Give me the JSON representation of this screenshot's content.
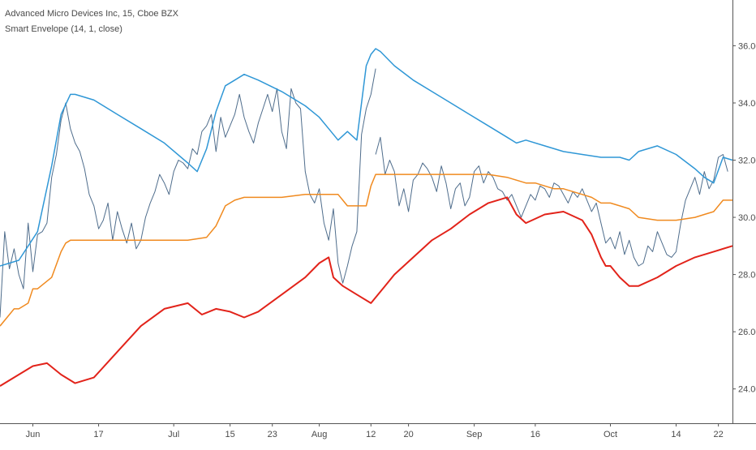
{
  "legend": {
    "title": "Advanced Micro Devices Inc, 15, Cboe BZX",
    "indicator": "Smart Envelope (14, 1, close)"
  },
  "chart_data": {
    "type": "line",
    "ylim": [
      22.8,
      37.6
    ],
    "xlim": [
      0,
      156
    ],
    "y_ticks": [
      {
        "label": "36.00",
        "value": 36
      },
      {
        "label": "34.00",
        "value": 34
      },
      {
        "label": "32.00",
        "value": 32
      },
      {
        "label": "30.00",
        "value": 30
      },
      {
        "label": "28.00",
        "value": 28
      },
      {
        "label": "26.00",
        "value": 26
      },
      {
        "label": "24.00",
        "value": 24
      }
    ],
    "x_ticks": [
      {
        "label": "Jun",
        "x": 7
      },
      {
        "label": "17",
        "x": 21
      },
      {
        "label": "Jul",
        "x": 37
      },
      {
        "label": "15",
        "x": 49
      },
      {
        "label": "23",
        "x": 58
      },
      {
        "label": "Aug",
        "x": 68
      },
      {
        "label": "12",
        "x": 79
      },
      {
        "label": "20",
        "x": 87
      },
      {
        "label": "Sep",
        "x": 101
      },
      {
        "label": "16",
        "x": 114
      },
      {
        "label": "Oct",
        "x": 130
      },
      {
        "label": "14",
        "x": 144
      },
      {
        "label": "22",
        "x": 153
      }
    ],
    "colors": {
      "price": "#4f6d8c",
      "upper": "#2f97d6",
      "middle": "#f08a1f",
      "lower": "#e2231a",
      "axis": "#555555"
    },
    "series": [
      {
        "key": "upper",
        "x": [
          0,
          4,
          8,
          11,
          13,
          15,
          16,
          20,
          25,
          30,
          35,
          40,
          42,
          44,
          46,
          48,
          50,
          52,
          55,
          60,
          65,
          68,
          70,
          72,
          74,
          76,
          78,
          79,
          80,
          81,
          84,
          88,
          92,
          96,
          100,
          104,
          108,
          110,
          112,
          116,
          120,
          124,
          128,
          130,
          132,
          134,
          136,
          140,
          144,
          148,
          150,
          152,
          154,
          156
        ],
        "y": [
          28.3,
          28.5,
          29.5,
          31.8,
          33.6,
          34.3,
          34.3,
          34.1,
          33.6,
          33.1,
          32.6,
          31.9,
          31.6,
          32.4,
          33.7,
          34.6,
          34.8,
          35.0,
          34.8,
          34.4,
          33.9,
          33.5,
          33.1,
          32.7,
          33.0,
          32.7,
          35.3,
          35.7,
          35.9,
          35.8,
          35.3,
          34.8,
          34.4,
          34.0,
          33.6,
          33.2,
          32.8,
          32.6,
          32.7,
          32.5,
          32.3,
          32.2,
          32.1,
          32.1,
          32.1,
          32.0,
          32.3,
          32.5,
          32.2,
          31.7,
          31.4,
          31.2,
          32.1,
          32.0
        ]
      },
      {
        "key": "middle",
        "x": [
          0,
          2,
          3,
          4,
          6,
          7,
          8,
          11,
          13,
          14,
          15,
          16,
          20,
          25,
          30,
          35,
          40,
          44,
          46,
          48,
          50,
          52,
          55,
          60,
          65,
          68,
          70,
          72,
          73,
          74,
          76,
          78,
          79,
          80,
          90,
          100,
          104,
          108,
          110,
          112,
          114,
          116,
          118,
          120,
          122,
          124,
          126,
          128,
          130,
          132,
          134,
          136,
          140,
          144,
          148,
          150,
          152,
          154,
          156
        ],
        "y": [
          26.2,
          26.6,
          26.8,
          26.8,
          27.0,
          27.5,
          27.5,
          27.9,
          28.8,
          29.1,
          29.2,
          29.2,
          29.2,
          29.2,
          29.2,
          29.2,
          29.2,
          29.3,
          29.7,
          30.4,
          30.6,
          30.7,
          30.7,
          30.7,
          30.8,
          30.8,
          30.8,
          30.8,
          30.6,
          30.4,
          30.4,
          30.4,
          31.1,
          31.5,
          31.5,
          31.5,
          31.5,
          31.4,
          31.3,
          31.2,
          31.2,
          31.1,
          31.0,
          31.0,
          30.9,
          30.8,
          30.7,
          30.5,
          30.5,
          30.4,
          30.3,
          30.0,
          29.9,
          29.9,
          30.0,
          30.1,
          30.2,
          30.6,
          30.6
        ]
      },
      {
        "key": "lower",
        "x": [
          0,
          4,
          7,
          10,
          13,
          16,
          20,
          25,
          30,
          35,
          40,
          43,
          46,
          49,
          52,
          55,
          60,
          65,
          68,
          70,
          71,
          73,
          76,
          79,
          82,
          84,
          88,
          92,
          96,
          100,
          104,
          108,
          110,
          112,
          116,
          120,
          124,
          126,
          128,
          129,
          130,
          132,
          134,
          136,
          140,
          144,
          148,
          152,
          156
        ],
        "y": [
          24.1,
          24.5,
          24.8,
          24.9,
          24.5,
          24.2,
          24.4,
          25.3,
          26.2,
          26.8,
          27.0,
          26.6,
          26.8,
          26.7,
          26.5,
          26.7,
          27.3,
          27.9,
          28.4,
          28.6,
          27.9,
          27.6,
          27.3,
          27.0,
          27.6,
          28.0,
          28.6,
          29.2,
          29.6,
          30.1,
          30.5,
          30.7,
          30.1,
          29.8,
          30.1,
          30.2,
          29.9,
          29.4,
          28.6,
          28.3,
          28.3,
          27.9,
          27.6,
          27.6,
          27.9,
          28.3,
          28.6,
          28.8,
          29.0
        ]
      },
      {
        "key": "price",
        "x": [
          0,
          1,
          2,
          3,
          4,
          5,
          6,
          7,
          8,
          9,
          10,
          11,
          12,
          13,
          14,
          15,
          16,
          17,
          18,
          19,
          20,
          21,
          22,
          23,
          24,
          25,
          26,
          27,
          28,
          29,
          30,
          31,
          32,
          33,
          34,
          35,
          36,
          37,
          38,
          39,
          40,
          41,
          42,
          43,
          44,
          45,
          46,
          47,
          48,
          49,
          50,
          51,
          52,
          53,
          54,
          55,
          56,
          57,
          58,
          59,
          60,
          61,
          62,
          63,
          64,
          65,
          66,
          67,
          68,
          69,
          70,
          71,
          72,
          73,
          74,
          75,
          76,
          77,
          78,
          79,
          80
        ],
        "y": [
          26.5,
          29.5,
          28.2,
          28.9,
          28.0,
          27.5,
          29.8,
          28.1,
          29.4,
          29.5,
          29.8,
          31.4,
          32.2,
          33.4,
          34.0,
          33.1,
          32.6,
          32.3,
          31.7,
          30.8,
          30.4,
          29.6,
          29.9,
          30.5,
          29.2,
          30.2,
          29.6,
          29.1,
          29.8,
          28.9,
          29.2,
          30.0,
          30.5,
          30.9,
          31.5,
          31.2,
          30.8,
          31.6,
          32.0,
          31.9,
          31.7,
          32.4,
          32.2,
          33.0,
          33.2,
          33.6,
          32.3,
          33.5,
          32.8,
          33.2,
          33.6,
          34.3,
          33.5,
          33.0,
          32.6,
          33.3,
          33.8,
          34.3,
          33.7,
          34.5,
          33.0,
          32.4,
          34.5,
          34.0,
          33.8,
          31.6,
          30.8,
          30.5,
          31.0,
          29.8,
          29.2,
          30.3,
          28.4,
          27.7,
          28.3,
          29.0,
          29.5,
          32.9,
          33.8,
          34.3,
          35.2
        ]
      },
      {
        "key": "price",
        "x": [
          80,
          81,
          82,
          83,
          84,
          85,
          86,
          87,
          88,
          89,
          90,
          91,
          92,
          93,
          94,
          95,
          96,
          97,
          98,
          99,
          100,
          101,
          102,
          103,
          104,
          105,
          106,
          107,
          108,
          109,
          110,
          111,
          112,
          113,
          114,
          115,
          116,
          117,
          118,
          119,
          120,
          121,
          122,
          123,
          124,
          125,
          126,
          127,
          128,
          129,
          130,
          131,
          132,
          133,
          134,
          135,
          136,
          137,
          138,
          139,
          140,
          141,
          142,
          143,
          144,
          145,
          146,
          147,
          148,
          149,
          150,
          151,
          152,
          153,
          154,
          155
        ],
        "y": [
          32.2,
          32.8,
          31.5,
          32.0,
          31.6,
          30.4,
          31.0,
          30.2,
          31.3,
          31.5,
          31.9,
          31.7,
          31.4,
          30.9,
          31.8,
          31.2,
          30.3,
          31.0,
          31.2,
          30.4,
          30.7,
          31.6,
          31.8,
          31.2,
          31.6,
          31.4,
          31.0,
          30.9,
          30.6,
          30.8,
          30.4,
          30.0,
          30.4,
          30.8,
          30.6,
          31.1,
          31.0,
          30.7,
          31.2,
          31.1,
          30.8,
          30.5,
          30.9,
          30.7,
          31.0,
          30.6,
          30.2,
          30.5,
          29.8,
          29.1,
          29.3,
          28.9,
          29.5,
          28.7,
          29.2,
          28.6,
          28.3,
          28.4,
          29.0,
          28.8,
          29.5,
          29.1,
          28.7,
          28.6,
          28.8,
          29.8,
          30.6,
          31.0,
          31.4,
          30.8,
          31.6,
          31.0,
          31.3,
          32.1,
          32.2,
          31.6
        ]
      }
    ]
  }
}
